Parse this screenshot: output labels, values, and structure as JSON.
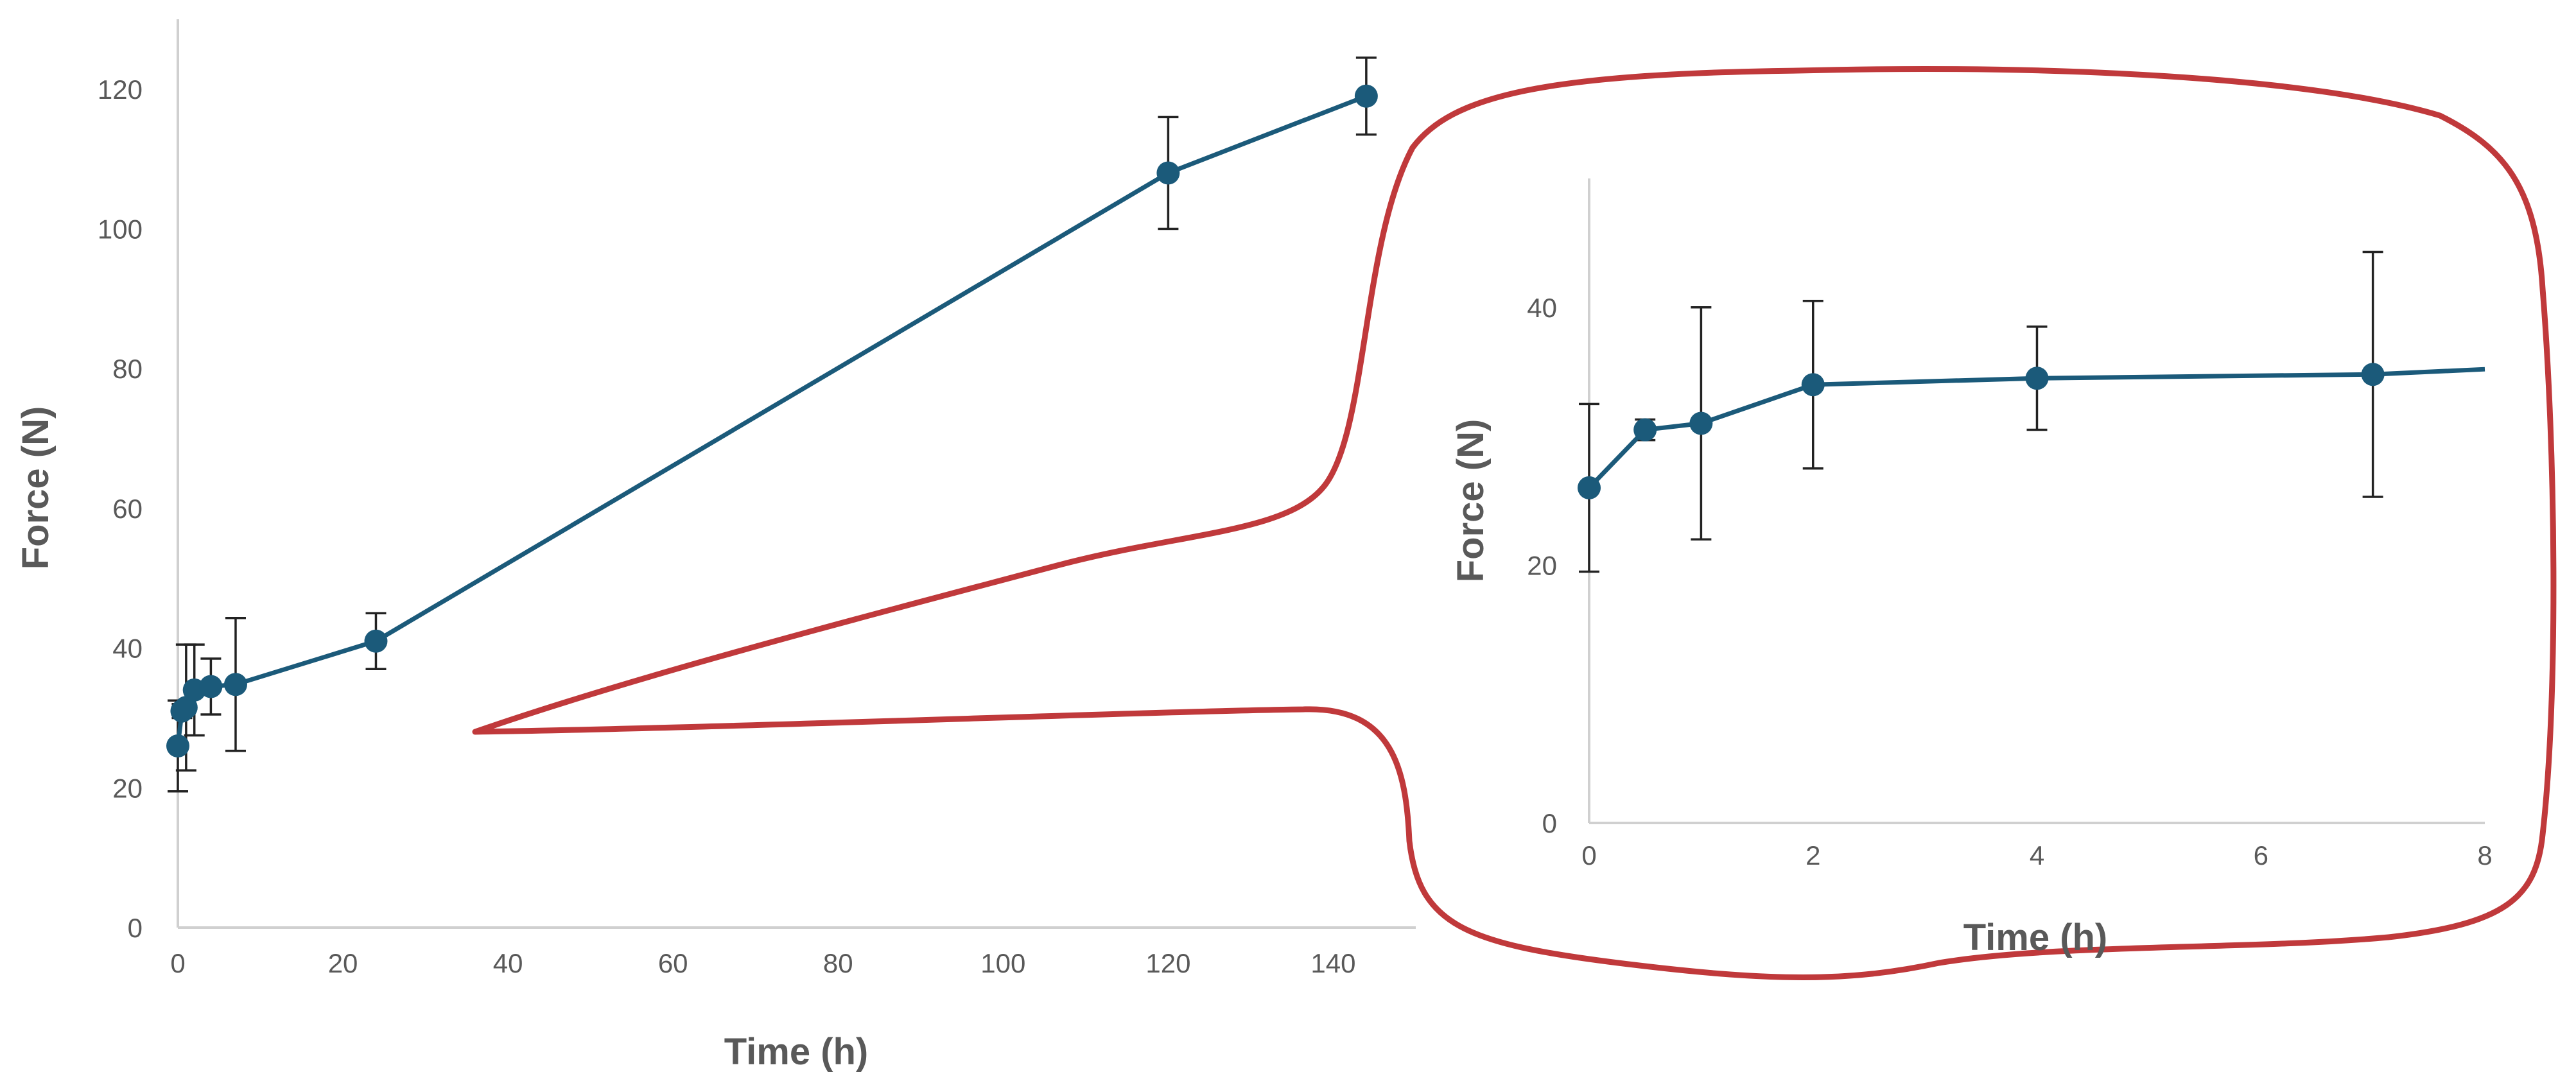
{
  "chart_data": [
    {
      "type": "line",
      "title": "",
      "xlabel": "Time (h)",
      "ylabel": "Force (N)",
      "xlim": [
        0,
        150
      ],
      "ylim": [
        0,
        130
      ],
      "xticks": [
        0,
        20,
        40,
        60,
        80,
        100,
        120,
        140
      ],
      "yticks": [
        0,
        20,
        40,
        60,
        80,
        100,
        120
      ],
      "grid": false,
      "series": [
        {
          "name": "Force",
          "color": "#1b5a7a",
          "x": [
            0,
            0.5,
            1,
            2,
            4,
            7,
            24,
            120,
            144
          ],
          "y": [
            26,
            31,
            31.5,
            34,
            34.5,
            34.8,
            41,
            108,
            119
          ],
          "err": [
            6.5,
            1,
            9,
            6.5,
            4,
            9.5,
            4,
            8,
            5.5
          ]
        }
      ]
    },
    {
      "type": "line",
      "title": "",
      "xlabel": "Time (h)",
      "ylabel": "Force (N)",
      "xlim": [
        0,
        8
      ],
      "ylim": [
        0,
        50
      ],
      "xticks": [
        0,
        2,
        4,
        6,
        8
      ],
      "yticks": [
        0,
        20,
        40
      ],
      "grid": false,
      "series": [
        {
          "name": "Force",
          "color": "#1b5a7a",
          "x": [
            0,
            0.5,
            1,
            2,
            4,
            7
          ],
          "y": [
            26,
            30.5,
            31,
            34,
            34.5,
            34.8
          ],
          "err": [
            6.5,
            0.8,
            9,
            6.5,
            4,
            9.5
          ],
          "line_end": [
            8,
            35.2
          ]
        }
      ]
    }
  ]
}
